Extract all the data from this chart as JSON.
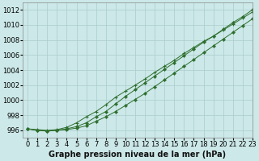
{
  "title": "Graphe pression niveau de la mer (hPa)",
  "background_color": "#cce8e8",
  "grid_color": "#aacccc",
  "line_color": "#2d6e2d",
  "xlim": [
    -0.5,
    23
  ],
  "ylim": [
    995.0,
    1013.0
  ],
  "yticks": [
    996,
    998,
    1000,
    1002,
    1004,
    1006,
    1008,
    1010,
    1012
  ],
  "xticks": [
    0,
    1,
    2,
    3,
    4,
    5,
    6,
    7,
    8,
    9,
    10,
    11,
    12,
    13,
    14,
    15,
    16,
    17,
    18,
    19,
    20,
    21,
    22,
    23
  ],
  "series1": [
    996.2,
    996.0,
    995.9,
    996.0,
    996.1,
    996.3,
    996.6,
    997.2,
    997.8,
    998.5,
    999.3,
    1000.1,
    1000.9,
    1001.8,
    1002.7,
    1003.6,
    1004.5,
    1005.4,
    1006.3,
    1007.2,
    1008.1,
    1009.0,
    1009.9,
    1010.8
  ],
  "series2": [
    996.2,
    996.0,
    995.9,
    996.0,
    996.2,
    996.5,
    997.0,
    997.8,
    998.5,
    999.5,
    1000.5,
    1001.4,
    1002.3,
    1003.2,
    1004.1,
    1005.0,
    1005.9,
    1006.8,
    1007.7,
    1008.5,
    1009.4,
    1010.3,
    1011.1,
    1012.0
  ],
  "series3": [
    996.2,
    996.1,
    996.0,
    996.1,
    996.4,
    997.0,
    997.8,
    998.5,
    999.4,
    1000.4,
    1001.2,
    1002.0,
    1002.8,
    1003.7,
    1004.5,
    1005.3,
    1006.2,
    1007.0,
    1007.8,
    1008.5,
    1009.3,
    1010.1,
    1010.9,
    1011.7
  ],
  "title_fontsize": 7,
  "tick_fontsize": 6
}
